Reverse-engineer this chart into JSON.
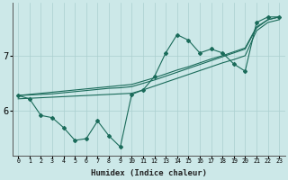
{
  "xlabel": "Humidex (Indice chaleur)",
  "bg_color": "#cce8e8",
  "grid_color": "#aacfcf",
  "line_color": "#1a6b5a",
  "xlim": [
    -0.5,
    23.5
  ],
  "ylim": [
    5.2,
    7.95
  ],
  "y_ticks": [
    6,
    7
  ],
  "line1_x": [
    0,
    1,
    2,
    3,
    4,
    5,
    6,
    7,
    8,
    9,
    10,
    11,
    12,
    13,
    14,
    15,
    16,
    17,
    18,
    19,
    20,
    21,
    22,
    23
  ],
  "line1_y": [
    6.28,
    6.22,
    5.92,
    5.88,
    5.7,
    5.47,
    5.5,
    5.82,
    5.55,
    5.35,
    6.3,
    6.38,
    6.62,
    7.05,
    7.38,
    7.28,
    7.05,
    7.12,
    7.05,
    6.85,
    6.72,
    7.6,
    7.7,
    7.7
  ],
  "line2_x": [
    0,
    1,
    2,
    3,
    4,
    5,
    6,
    7,
    8,
    9,
    10,
    11,
    12,
    13,
    14,
    15,
    16,
    17,
    18,
    19,
    20,
    21,
    22,
    23
  ],
  "line2_y": [
    6.28,
    6.29,
    6.3,
    6.31,
    6.33,
    6.35,
    6.37,
    6.39,
    6.41,
    6.42,
    6.44,
    6.5,
    6.56,
    6.63,
    6.7,
    6.77,
    6.84,
    6.91,
    6.98,
    7.05,
    7.12,
    7.5,
    7.65,
    7.7
  ],
  "line3_x": [
    0,
    1,
    2,
    3,
    4,
    5,
    6,
    7,
    8,
    9,
    10,
    11,
    12,
    13,
    14,
    15,
    16,
    17,
    18,
    19,
    20,
    21,
    22,
    23
  ],
  "line3_y": [
    6.22,
    6.23,
    6.24,
    6.25,
    6.26,
    6.27,
    6.28,
    6.29,
    6.3,
    6.31,
    6.32,
    6.38,
    6.45,
    6.52,
    6.59,
    6.66,
    6.73,
    6.8,
    6.87,
    6.93,
    7.0,
    7.45,
    7.6,
    7.65
  ],
  "line4_x": [
    0,
    1,
    2,
    3,
    4,
    5,
    6,
    7,
    8,
    9,
    10,
    11,
    12,
    13,
    14,
    15,
    16,
    17,
    18,
    19,
    20,
    21,
    22,
    23
  ],
  "line4_y": [
    6.28,
    6.3,
    6.32,
    6.34,
    6.36,
    6.38,
    6.4,
    6.42,
    6.44,
    6.46,
    6.48,
    6.54,
    6.6,
    6.67,
    6.74,
    6.8,
    6.87,
    6.94,
    7.0,
    7.07,
    7.14,
    7.52,
    7.65,
    7.7
  ]
}
